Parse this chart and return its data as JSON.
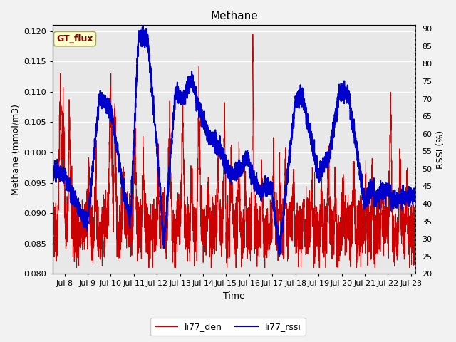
{
  "title": "Methane",
  "xlabel": "Time",
  "ylabel_left": "Methane (mmol/m3)",
  "ylabel_right": "RSSI (%)",
  "xlim_days": [
    7.5,
    23.2
  ],
  "ylim_left": [
    0.08,
    0.121
  ],
  "ylim_right": [
    20,
    91
  ],
  "xticks": [
    8,
    9,
    10,
    11,
    12,
    13,
    14,
    15,
    16,
    17,
    18,
    19,
    20,
    21,
    22,
    23
  ],
  "xtick_labels": [
    "Jul 8",
    "Jul 9",
    "Jul 10",
    "Jul 11",
    "Jul 12",
    "Jul 13",
    "Jul 14",
    "Jul 15",
    "Jul 16",
    "Jul 17",
    "Jul 18",
    "Jul 19",
    "Jul 20",
    "Jul 21",
    "Jul 22",
    "Jul 23"
  ],
  "yticks_left": [
    0.08,
    0.085,
    0.09,
    0.095,
    0.1,
    0.105,
    0.11,
    0.115,
    0.12
  ],
  "yticks_right": [
    20,
    25,
    30,
    35,
    40,
    45,
    50,
    55,
    60,
    65,
    70,
    75,
    80,
    85,
    90
  ],
  "color_den": "#cc0000",
  "color_rssi": "#0000cc",
  "legend_den": "li77_den",
  "legend_rssi": "li77_rssi",
  "annotation_text": "GT_flux",
  "annotation_fg": "#8b0000",
  "annotation_bg": "#ffffcc",
  "annotation_edge": "#aaaa66",
  "fig_bg": "#f2f2f2",
  "plot_bg": "#e8e8e8",
  "grid_color": "#ffffff",
  "linewidth_den": 0.7,
  "linewidth_rssi": 1.5
}
